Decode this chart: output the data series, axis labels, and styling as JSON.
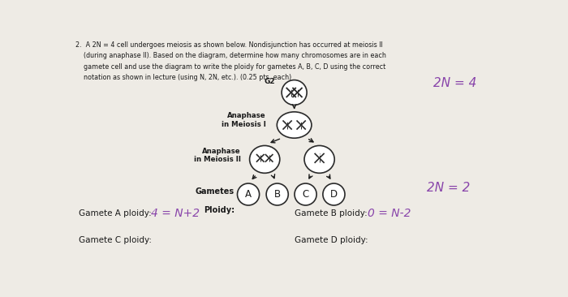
{
  "bg_color": "#eeebe5",
  "title_line1": "2.  A 2N = 4 cell undergoes meiosis as shown below. Nondisjunction has occurred at meiosis II",
  "title_line2": "    (during anaphase II). Based on the diagram, determine how many chromosomes are in each",
  "title_line3": "    gamete cell and use the diagram to write the ploidy for gametes A, B, C, D using the correct",
  "title_line4": "    notation as shown in lecture (using N, 2N, etc.). (0.25 pts. each)",
  "label_g2": "G2",
  "label_ana1": "Anaphase\nin Meiosis I",
  "label_ana2": "Anaphase\nin Meiosis II",
  "label_gametes": "Gametes",
  "label_ploidy": "Ploidy:",
  "label_2n4": "2N = 4",
  "label_2n2": "2N = 2",
  "gamete_A": "A",
  "gamete_B": "B",
  "gamete_C": "C",
  "gamete_D": "D",
  "text_color": "#1a1a1a",
  "circle_color": "#2a2a2a",
  "arrow_color": "#1a1a1a",
  "handwritten_color": "#8844aa",
  "gameteA_label": "Gamete A ploidy: ",
  "gameteA_answer": "4 = N+2",
  "gameteB_label": "Gamete B ploidy: ",
  "gameteB_answer": "0 = N-2",
  "gameteC_label": "Gamete C ploidy:",
  "gameteD_label": "Gamete D ploidy:"
}
